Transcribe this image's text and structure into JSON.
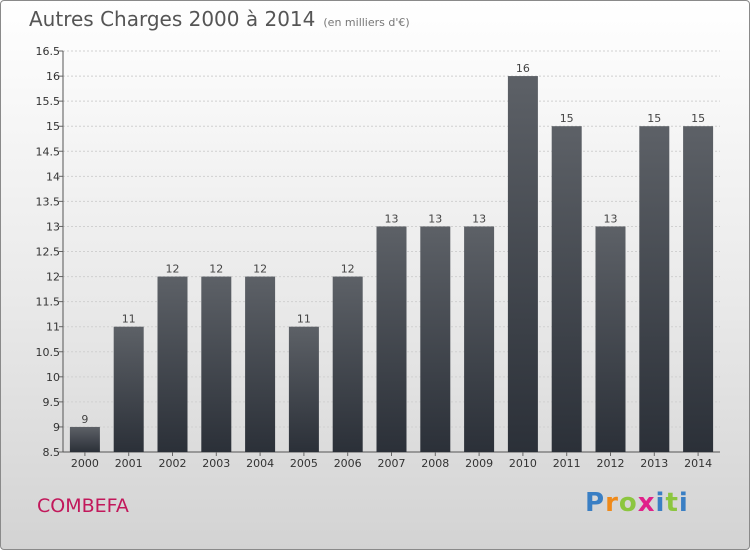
{
  "header": {
    "title": "Autres Charges 2000 à 2014",
    "subtitle": "(en milliers d'€)"
  },
  "footer": {
    "city": "COMBEFA",
    "brand": "Proxiti"
  },
  "colors": {
    "bar_top": "#5d6167",
    "bar_bottom": "#2b3038",
    "city": "#c2185b"
  },
  "chart_data": {
    "type": "bar",
    "title": "Autres Charges 2000 à 2014",
    "subtitle": "(en milliers d'€)",
    "categories": [
      "2000",
      "2001",
      "2002",
      "2003",
      "2004",
      "2005",
      "2006",
      "2007",
      "2008",
      "2009",
      "2010",
      "2011",
      "2012",
      "2013",
      "2014"
    ],
    "values": [
      9,
      11,
      12,
      12,
      12,
      11,
      12,
      13,
      13,
      13,
      16,
      15,
      13,
      15,
      15
    ],
    "value_labels": [
      "9",
      "11",
      "12",
      "12",
      "12",
      "11",
      "12",
      "13",
      "13",
      "13",
      "16",
      "15",
      "13",
      "15",
      "15"
    ],
    "ylim": [
      8.5,
      16.5
    ],
    "yticks": [
      "8.5",
      "9",
      "9.5",
      "10",
      "10.5",
      "11",
      "11.5",
      "12",
      "12.5",
      "13",
      "13.5",
      "14",
      "14.5",
      "15",
      "15.5",
      "16",
      "16.5"
    ],
    "grid": true,
    "legend": "none"
  }
}
